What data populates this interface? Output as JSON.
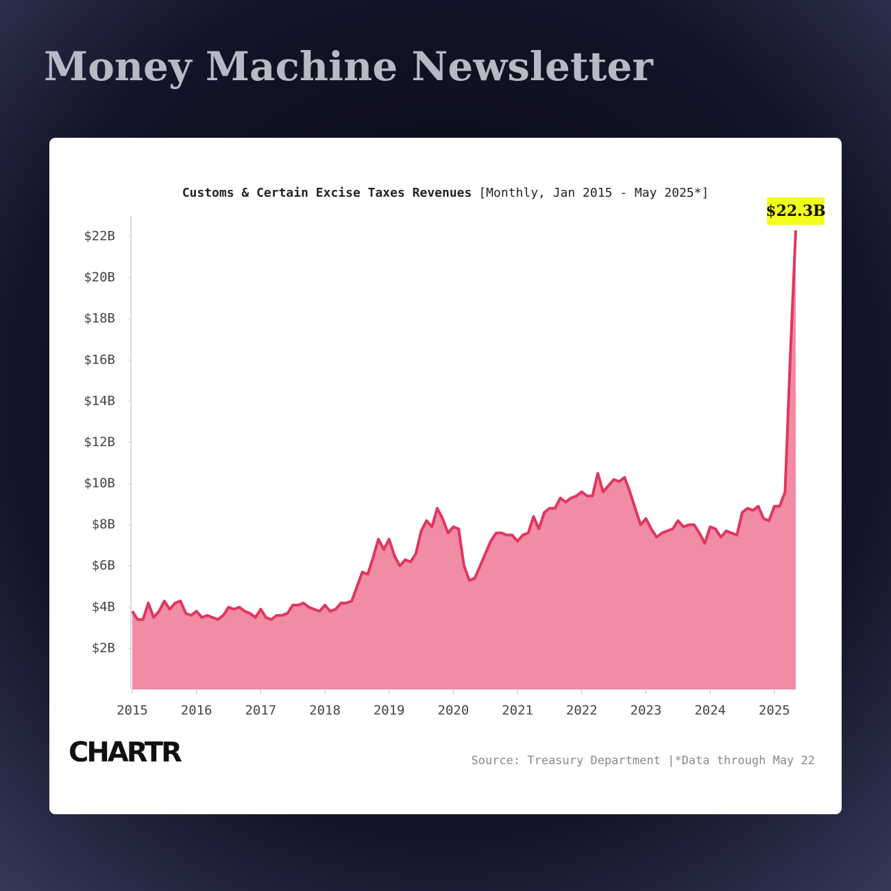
{
  "header": {
    "title": "Money Machine Newsletter"
  },
  "chart_data": {
    "type": "area",
    "title": "Customs & Certain Excise Taxes Revenues",
    "subtitle": "[Monthly, Jan 2015 - May 2025*]",
    "source": "Source: Treasury Department |*Data through May 22",
    "logo": "CHARTR",
    "line_color": "#e0365f",
    "fill_color": "#f08ca4",
    "grid": false,
    "xlim": [
      2015,
      2025.333
    ],
    "xticks": [
      2015,
      2016,
      2017,
      2018,
      2019,
      2020,
      2021,
      2022,
      2023,
      2024,
      2025
    ],
    "ylim": [
      0,
      23
    ],
    "yticks": [
      {
        "value": 2,
        "label": "$2B"
      },
      {
        "value": 4,
        "label": "$4B"
      },
      {
        "value": 6,
        "label": "$6B"
      },
      {
        "value": 8,
        "label": "$8B"
      },
      {
        "value": 10,
        "label": "$10B"
      },
      {
        "value": 12,
        "label": "$12B"
      },
      {
        "value": 14,
        "label": "$14B"
      },
      {
        "value": 16,
        "label": "$16B"
      },
      {
        "value": 18,
        "label": "$18B"
      },
      {
        "value": 20,
        "label": "$20B"
      },
      {
        "value": 22,
        "label": "$22B"
      }
    ],
    "x": [
      2015,
      2015.083,
      2015.167,
      2015.25,
      2015.333,
      2015.417,
      2015.5,
      2015.583,
      2015.667,
      2015.75,
      2015.833,
      2015.917,
      2016,
      2016.083,
      2016.167,
      2016.25,
      2016.333,
      2016.417,
      2016.5,
      2016.583,
      2016.667,
      2016.75,
      2016.833,
      2016.917,
      2017,
      2017.083,
      2017.167,
      2017.25,
      2017.333,
      2017.417,
      2017.5,
      2017.583,
      2017.667,
      2017.75,
      2017.833,
      2017.917,
      2018,
      2018.083,
      2018.167,
      2018.25,
      2018.333,
      2018.417,
      2018.5,
      2018.583,
      2018.667,
      2018.75,
      2018.833,
      2018.917,
      2019,
      2019.083,
      2019.167,
      2019.25,
      2019.333,
      2019.417,
      2019.5,
      2019.583,
      2019.667,
      2019.75,
      2019.833,
      2019.917,
      2020,
      2020.083,
      2020.167,
      2020.25,
      2020.333,
      2020.417,
      2020.5,
      2020.583,
      2020.667,
      2020.75,
      2020.833,
      2020.917,
      2021,
      2021.083,
      2021.167,
      2021.25,
      2021.333,
      2021.417,
      2021.5,
      2021.583,
      2021.667,
      2021.75,
      2021.833,
      2021.917,
      2022,
      2022.083,
      2022.167,
      2022.25,
      2022.333,
      2022.417,
      2022.5,
      2022.583,
      2022.667,
      2022.75,
      2022.833,
      2022.917,
      2023,
      2023.083,
      2023.167,
      2023.25,
      2023.333,
      2023.417,
      2023.5,
      2023.583,
      2023.667,
      2023.75,
      2023.833,
      2023.917,
      2024,
      2024.083,
      2024.167,
      2024.25,
      2024.333,
      2024.417,
      2024.5,
      2024.583,
      2024.667,
      2024.75,
      2024.833,
      2024.917,
      2025,
      2025.083,
      2025.167,
      2025.25,
      2025.333
    ],
    "values": [
      3.8,
      3.4,
      3.4,
      4.2,
      3.5,
      3.8,
      4.3,
      3.9,
      4.2,
      4.3,
      3.7,
      3.6,
      3.8,
      3.5,
      3.6,
      3.5,
      3.4,
      3.6,
      4.0,
      3.9,
      4.0,
      3.8,
      3.7,
      3.5,
      3.9,
      3.5,
      3.4,
      3.6,
      3.6,
      3.7,
      4.1,
      4.1,
      4.2,
      4.0,
      3.9,
      3.8,
      4.1,
      3.8,
      3.9,
      4.2,
      4.2,
      4.3,
      5.0,
      5.7,
      5.6,
      6.4,
      7.3,
      6.8,
      7.3,
      6.5,
      6.0,
      6.3,
      6.2,
      6.6,
      7.7,
      8.2,
      7.9,
      8.8,
      8.3,
      7.6,
      7.9,
      7.8,
      6.0,
      5.3,
      5.4,
      6.0,
      6.6,
      7.2,
      7.6,
      7.6,
      7.5,
      7.5,
      7.2,
      7.5,
      7.6,
      8.4,
      7.8,
      8.6,
      8.8,
      8.8,
      9.3,
      9.1,
      9.3,
      9.4,
      9.6,
      9.4,
      9.4,
      10.5,
      9.6,
      9.9,
      10.2,
      10.1,
      10.3,
      9.6,
      8.8,
      8.0,
      8.3,
      7.8,
      7.4,
      7.6,
      7.7,
      7.8,
      8.2,
      7.9,
      8.0,
      8.0,
      7.6,
      7.1,
      7.9,
      7.8,
      7.4,
      7.7,
      7.6,
      7.5,
      8.6,
      8.8,
      8.7,
      8.9,
      8.3,
      8.2,
      8.9,
      8.9,
      9.6,
      16.3,
      22.3
    ],
    "value_labels": [
      null,
      null,
      null,
      null,
      null,
      null,
      null,
      null,
      null,
      null,
      null,
      null,
      null,
      null,
      null,
      null,
      null,
      null,
      null,
      null,
      null,
      null,
      null,
      null,
      null,
      null,
      null,
      null,
      null,
      null,
      null,
      null,
      null,
      null,
      null,
      null,
      null,
      null,
      null,
      null,
      null,
      null,
      null,
      null,
      null,
      null,
      null,
      null,
      null,
      null,
      null,
      null,
      null,
      null,
      null,
      null,
      null,
      null,
      null,
      null,
      null,
      null,
      null,
      null,
      null,
      null,
      null,
      null,
      null,
      null,
      null,
      null,
      null,
      null,
      null,
      null,
      null,
      null,
      null,
      null,
      null,
      null,
      null,
      null,
      null,
      null,
      null,
      null,
      null,
      null,
      null,
      null,
      null,
      null,
      null,
      null,
      null,
      null,
      null,
      null,
      null,
      null,
      null,
      null,
      null,
      null,
      null,
      null,
      null,
      null,
      null,
      null,
      null,
      null,
      null,
      null,
      null,
      null,
      null,
      null,
      null,
      null,
      null,
      null,
      "$22.3B"
    ]
  }
}
